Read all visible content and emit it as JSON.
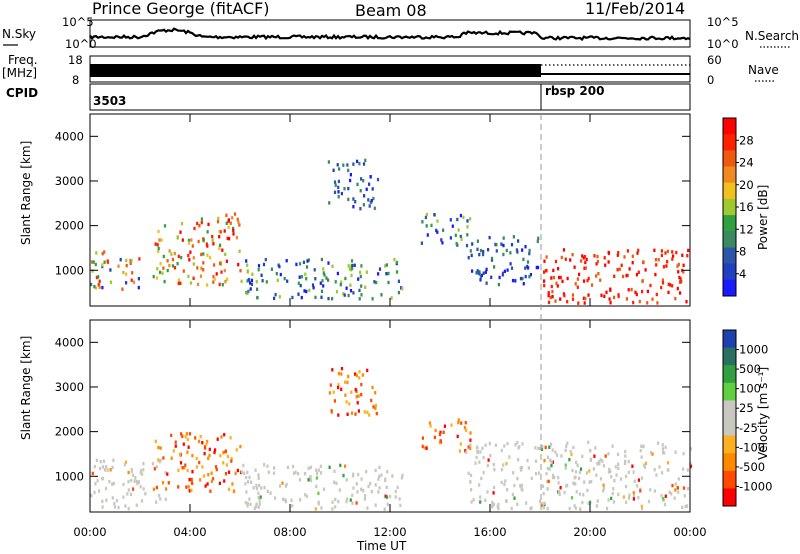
{
  "header": {
    "radar": "Prince George (fitACF)",
    "beam": "Beam 08",
    "date": "11/Feb/2014"
  },
  "top_panels": {
    "nsky_label": "N.Sky",
    "nsky_ticks": [
      "10^5",
      "10^0"
    ],
    "nsky_right_ticks": [
      "10^5",
      "10^0"
    ],
    "nsearch_label": "N.Search",
    "freq_label": "Freq.",
    "freq_unit": "[MHz]",
    "freq_ticks": [
      "18",
      "8"
    ],
    "nave_ticks": [
      "60",
      "0"
    ],
    "nave_label": "Nave",
    "cpid_label": "CPID",
    "cpid_values": [
      "3503",
      "rbsp 200"
    ]
  },
  "colors": {
    "power_scale": [
      "#1a1aff",
      "#2040c0",
      "#2a55a8",
      "#3a8a60",
      "#30a040",
      "#a0c830",
      "#f0c020",
      "#f08a20",
      "#f05a10",
      "#ff2000",
      "#ff0000"
    ],
    "velocity_scale": [
      "#ff0000",
      "#ff4a00",
      "#ff8a00",
      "#ffb020",
      "#c8c8c0",
      "#c8c8c0",
      "#60d040",
      "#30a040",
      "#2a7060",
      "#2040b0"
    ],
    "gray_scatter": "#c8c8c0",
    "border": "#000000"
  },
  "chart_data": [
    {
      "type": "heatmap",
      "name": "power",
      "ylabel": "Slant Range [km]",
      "yticks": [
        "1000",
        "2000",
        "3000",
        "4000"
      ],
      "ylim": [
        200,
        4500
      ],
      "xlim_hours": [
        0,
        24
      ],
      "colorbar": {
        "label": "Power [dB]",
        "ticks": [
          "4",
          "8",
          "12",
          "16",
          "20",
          "24",
          "28"
        ],
        "range": [
          0,
          30
        ]
      },
      "regions": [
        {
          "t": [
            0.0,
            2.0
          ],
          "r": [
            600,
            1500
          ],
          "level": "mixed-high"
        },
        {
          "t": [
            2.5,
            6.0
          ],
          "r": [
            700,
            2300
          ],
          "level": "high"
        },
        {
          "t": [
            6.0,
            12.5
          ],
          "r": [
            400,
            1300
          ],
          "level": "mid"
        },
        {
          "t": [
            9.5,
            11.5
          ],
          "r": [
            2400,
            3500
          ],
          "level": "low"
        },
        {
          "t": [
            13.2,
            15.2
          ],
          "r": [
            1600,
            2300
          ],
          "level": "mid"
        },
        {
          "t": [
            15.0,
            18.0
          ],
          "r": [
            700,
            1800
          ],
          "level": "low"
        },
        {
          "t": [
            18.0,
            24.0
          ],
          "r": [
            300,
            1500
          ],
          "level": "very-high"
        }
      ]
    },
    {
      "type": "heatmap",
      "name": "velocity",
      "ylabel": "Slant Range [km]",
      "yticks": [
        "1000",
        "2000",
        "3000",
        "4000"
      ],
      "ylim": [
        200,
        4500
      ],
      "xlabel": "Time UT",
      "xticks": [
        "00:00",
        "04:00",
        "08:00",
        "12:00",
        "16:00",
        "20:00",
        "00:00"
      ],
      "xlim_hours": [
        0,
        24
      ],
      "colorbar": {
        "label": "Velocity [m s⁻¹]",
        "ticks": [
          "1000",
          "500",
          "100",
          "25",
          "-25",
          "-100",
          "-500",
          "-1000"
        ],
        "range": [
          -1000,
          1000
        ]
      },
      "regions": [
        {
          "t": [
            0.0,
            3.0
          ],
          "r": [
            300,
            1400
          ],
          "level": "ground"
        },
        {
          "t": [
            2.5,
            6.0
          ],
          "r": [
            700,
            2000
          ],
          "level": "negative"
        },
        {
          "t": [
            6.0,
            12.5
          ],
          "r": [
            300,
            1300
          ],
          "level": "ground"
        },
        {
          "t": [
            9.5,
            11.5
          ],
          "r": [
            2400,
            3500
          ],
          "level": "negative"
        },
        {
          "t": [
            13.2,
            15.2
          ],
          "r": [
            1600,
            2300
          ],
          "level": "negative"
        },
        {
          "t": [
            15.0,
            24.0
          ],
          "r": [
            300,
            1800
          ],
          "level": "ground"
        }
      ]
    }
  ]
}
